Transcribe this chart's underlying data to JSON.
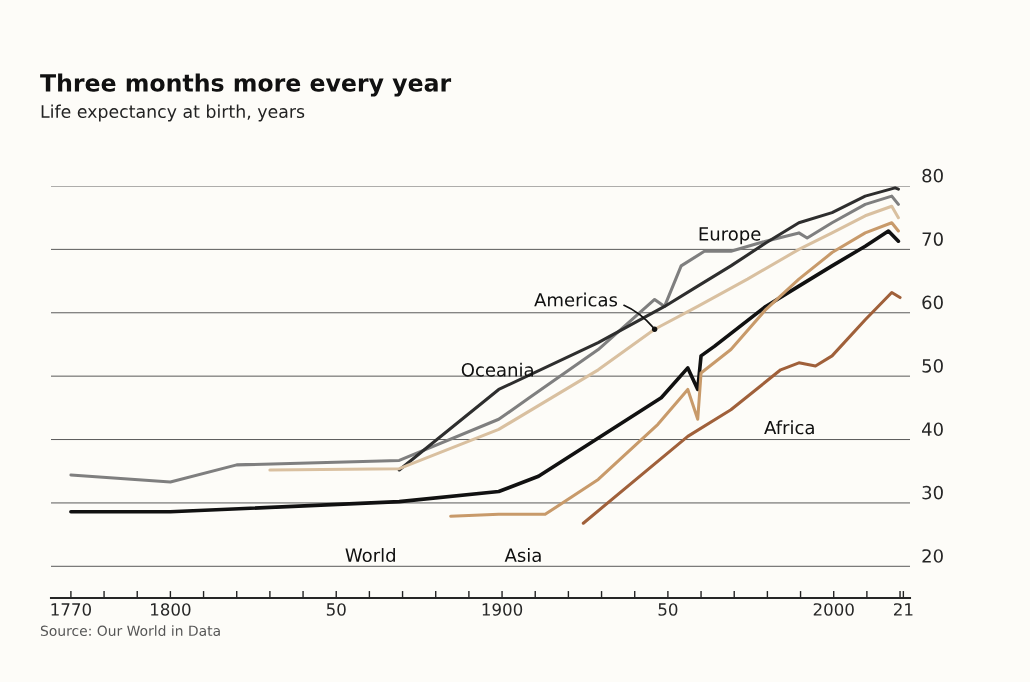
{
  "chart_data": {
    "type": "line",
    "title": "Three months more every year",
    "subtitle": "Life expectancy at birth, years",
    "series": [
      {
        "name": "World",
        "color": "#111111",
        "x": [
          1770,
          1800,
          1869,
          1899,
          1911,
          1948,
          1956,
          1959,
          1960,
          1964,
          1979.5,
          1989.5,
          1999.5,
          2009.5,
          2016.5,
          2019.5
        ],
        "values": [
          28.6,
          28.6,
          30.2,
          31.8,
          34.2,
          46.6,
          51.3,
          47.9,
          53.2,
          54.7,
          61,
          64.2,
          67.4,
          70.5,
          72.9,
          71.3
        ]
      },
      {
        "name": "Europe",
        "color": "#7f7f7f",
        "x": [
          1770,
          1800,
          1820,
          1869,
          1899,
          1908,
          1929,
          1946,
          1949,
          1954,
          1961,
          1969,
          1979.5,
          1989.5,
          1992,
          1999.5,
          2009.5,
          2017.5,
          2019.5
        ],
        "values": [
          34.4,
          33.3,
          36,
          36.7,
          43.2,
          46.5,
          54.2,
          62.1,
          61,
          67.4,
          69.7,
          69.7,
          71.3,
          72.6,
          71.8,
          74.2,
          77.1,
          78.4,
          77.1
        ]
      },
      {
        "name": "Oceania",
        "color": "#2e2e2e",
        "x": [
          1869,
          1899,
          1929,
          1949,
          1959,
          1969,
          1979.5,
          1989.5,
          1999.5,
          2009.5,
          2018.5,
          2019.5
        ],
        "values": [
          35.2,
          47.9,
          55.3,
          61,
          64.2,
          67.4,
          71,
          74.2,
          75.8,
          78.4,
          79.7,
          79.5
        ]
      },
      {
        "name": "Americas",
        "color": "#d9c0a0",
        "x": [
          1830,
          1869,
          1899,
          1929,
          1946,
          1959,
          1974,
          1989.5,
          1999.5,
          2009.5,
          2017.5,
          2019.5
        ],
        "values": [
          35.2,
          35.4,
          41.6,
          51,
          57.4,
          61,
          65.3,
          70,
          72.6,
          75.3,
          76.8,
          75
        ]
      },
      {
        "name": "Asia",
        "color": "#c89a6a",
        "x": [
          1884.5,
          1899,
          1913,
          1929,
          1947,
          1956,
          1959,
          1960,
          1969,
          1979.5,
          1989.5,
          1999.5,
          2009.5,
          2017.5,
          2019.5
        ],
        "values": [
          27.9,
          28.2,
          28.2,
          33.7,
          42.4,
          47.9,
          43.2,
          50.5,
          54.2,
          60.5,
          65.3,
          69.5,
          72.6,
          74.2,
          72.9
        ]
      },
      {
        "name": "Africa",
        "color": "#a0603a",
        "x": [
          1924.5,
          1956,
          1969,
          1984,
          1989.5,
          1994.5,
          1999.5,
          2009.5,
          2017.5,
          2020
        ],
        "values": [
          26.8,
          40.5,
          44.7,
          51,
          52.1,
          51.6,
          53.2,
          58.9,
          63.2,
          62.4
        ]
      }
    ],
    "xlim": [
      1764,
      2023
    ],
    "ylim": [
      15,
      80
    ],
    "xticks": [
      {
        "value": 1770,
        "label": "1770"
      },
      {
        "value": 1780,
        "label": null
      },
      {
        "value": 1790,
        "label": null
      },
      {
        "value": 1800,
        "label": "1800"
      },
      {
        "value": 1810,
        "label": null
      },
      {
        "value": 1820,
        "label": null
      },
      {
        "value": 1830,
        "label": null
      },
      {
        "value": 1840,
        "label": null
      },
      {
        "value": 1850,
        "label": "50"
      },
      {
        "value": 1860,
        "label": null
      },
      {
        "value": 1870,
        "label": null
      },
      {
        "value": 1880,
        "label": null
      },
      {
        "value": 1890,
        "label": null
      },
      {
        "value": 1900,
        "label": "1900"
      },
      {
        "value": 1910,
        "label": null
      },
      {
        "value": 1920,
        "label": null
      },
      {
        "value": 1930,
        "label": null
      },
      {
        "value": 1940,
        "label": null
      },
      {
        "value": 1950,
        "label": "50"
      },
      {
        "value": 1960,
        "label": null
      },
      {
        "value": 1970,
        "label": null
      },
      {
        "value": 1980,
        "label": null
      },
      {
        "value": 1990,
        "label": null
      },
      {
        "value": 2000,
        "label": "2000"
      },
      {
        "value": 2010,
        "label": null
      },
      {
        "value": 2020,
        "label": null
      },
      {
        "value": 2021,
        "label": "21"
      }
    ],
    "yticks": [
      20,
      30,
      40,
      50,
      60,
      70,
      80
    ],
    "grid": "y",
    "legend": false,
    "marker": "none",
    "line_style": "solid",
    "annotations": [
      "Source: Our World in Data"
    ]
  }
}
